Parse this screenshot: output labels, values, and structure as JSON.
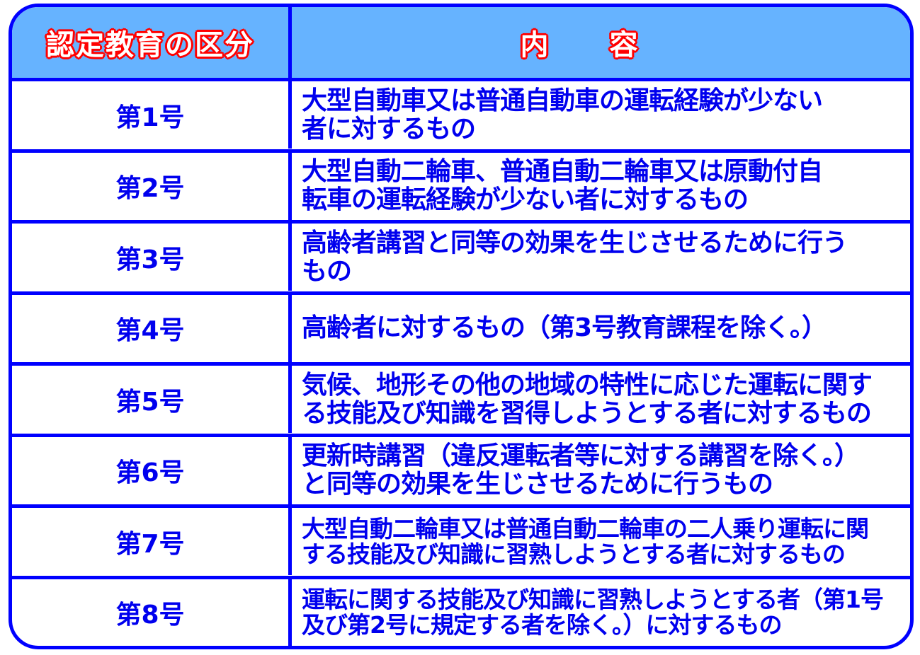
{
  "header": {
    "category": "認定教育の区分",
    "content": "内　　容"
  },
  "colors": {
    "border": "#0000ff",
    "header_bg": "#66b3ff",
    "text": "#0000ee",
    "header_outline": "#ff0000"
  },
  "rows": [
    {
      "number": "第1号",
      "description": "大型自動車又は普通自動車の運転経験が少ない\n者に対するもの"
    },
    {
      "number": "第2号",
      "description": "大型自動二輪車、普通自動二輪車又は原動付自\n転車の運転経験が少ない者に対するもの"
    },
    {
      "number": "第3号",
      "description": "高齢者講習と同等の効果を生じさせるために行う\nもの"
    },
    {
      "number": "第4号",
      "description": "高齢者に対するもの（第3号教育課程を除く。）"
    },
    {
      "number": "第5号",
      "description": "気候、地形その他の地域の特性に応じた運転に関す\nる技能及び知識を習得しようとする者に対するもの"
    },
    {
      "number": "第6号",
      "description": "更新時講習（違反運転者等に対する講習を除く。）\nと同等の効果を生じさせるために行うもの"
    },
    {
      "number": "第7号",
      "description": "大型自動二輪車又は普通自動二輪車の二人乗り運転に関\nする技能及び知識に習熟しようとする者に対するもの"
    },
    {
      "number": "第8号",
      "description": "運転に関する技能及び知識に習熟しようとする者（第1号\n及び第2号に規定する者を除く。）に対するもの"
    }
  ]
}
